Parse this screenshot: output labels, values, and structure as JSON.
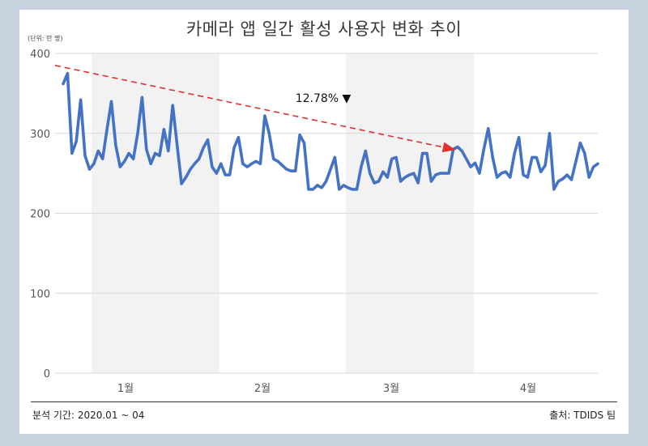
{
  "chart_data": {
    "type": "line",
    "title": "카메라 앱 일간 활성 사용자 변화 추이",
    "unit_label": "(단위: 만 명)",
    "ylim": [
      0,
      400
    ],
    "y_ticks": [
      "0",
      "100",
      "200",
      "300",
      "400"
    ],
    "x_ticks": [
      "1월",
      "2월",
      "3월",
      "4월"
    ],
    "grid": true,
    "series": [
      {
        "color": "#4472c4",
        "values": [
          362,
          375,
          275,
          290,
          342,
          272,
          255,
          262,
          278,
          268,
          305,
          340,
          285,
          258,
          265,
          275,
          268,
          300,
          345,
          280,
          262,
          275,
          272,
          305,
          278,
          335,
          285,
          237,
          245,
          255,
          262,
          268,
          282,
          292,
          258,
          250,
          262,
          248,
          248,
          282,
          295,
          262,
          258,
          262,
          265,
          262,
          322,
          300,
          268,
          265,
          260,
          255,
          253,
          253,
          298,
          288,
          230,
          230,
          235,
          232,
          240,
          255,
          270,
          230,
          235,
          232,
          230,
          230,
          258,
          278,
          250,
          238,
          240,
          252,
          245,
          268,
          270,
          240,
          245,
          248,
          250,
          238,
          275,
          275,
          240,
          248,
          250,
          250,
          250,
          280,
          283,
          278,
          268,
          258,
          263,
          250,
          280,
          306,
          270,
          245,
          250,
          252,
          245,
          275,
          295,
          248,
          245,
          270,
          270,
          252,
          260,
          300,
          230,
          240,
          243,
          248,
          242,
          265,
          288,
          275,
          245,
          258,
          262
        ]
      }
    ],
    "trend": {
      "from": [
        0,
        385
      ],
      "to": [
        89,
        280
      ],
      "label": "12.78% ▼",
      "color": "#e03030"
    },
    "shaded_months": [
      1,
      3
    ]
  },
  "footer": {
    "left": "분석 기간: 2020.01 ~ 04",
    "right": "출처: TDIDS 팀"
  }
}
